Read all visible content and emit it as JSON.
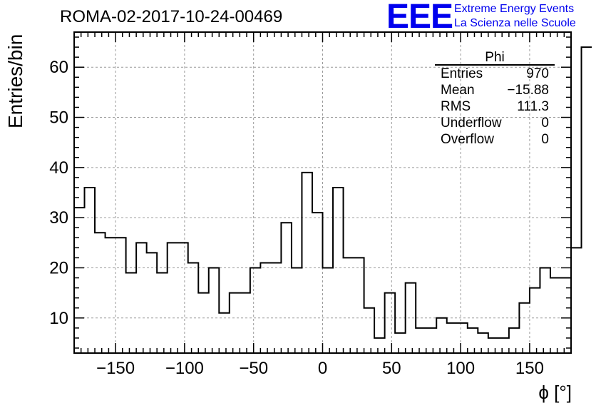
{
  "header": {
    "title": "ROMA-02-2017-10-24-00469",
    "logo_text": "EEE",
    "logo_line1": "Extreme Energy Events",
    "logo_line2": "La Scienza nelle Scuole"
  },
  "stats": {
    "name": "Phi",
    "rows": [
      {
        "label": "Entries",
        "value": "970"
      },
      {
        "label": "Mean",
        "value": "−15.88"
      },
      {
        "label": "RMS",
        "value": "111.3"
      },
      {
        "label": "Underflow",
        "value": "0"
      },
      {
        "label": "Overflow",
        "value": "0"
      }
    ]
  },
  "colors": {
    "logo": "#0000ee",
    "line": "#000000",
    "grid": "#9a9a9a"
  },
  "chart_data": {
    "type": "bar",
    "style": "step-histogram",
    "xlabel": "ϕ [°]",
    "ylabel": "Entries/bin",
    "xlim": [
      -180,
      180
    ],
    "ylim": [
      3,
      67
    ],
    "grid": true,
    "bin_width": 7.5,
    "xticks": [
      -150,
      -100,
      -50,
      0,
      50,
      100,
      150
    ],
    "yticks": [
      10,
      20,
      30,
      40,
      50,
      60
    ],
    "xtick_labels": [
      "−150",
      "−100",
      "−50",
      "0",
      "50",
      "100",
      "150"
    ],
    "ytick_labels": [
      "10",
      "20",
      "30",
      "40",
      "50",
      "60"
    ],
    "bin_edges_start": -180,
    "values": [
      32,
      36,
      27,
      26,
      26,
      19,
      25,
      23,
      19,
      25,
      25,
      21,
      15,
      20,
      11,
      15,
      15,
      20,
      21,
      21,
      29,
      20,
      39,
      31,
      20,
      36,
      22,
      22,
      12,
      6,
      15,
      7,
      17,
      8,
      8,
      10,
      9,
      9,
      8,
      7,
      6,
      6,
      8,
      13,
      16,
      20,
      18,
      18,
      24,
      64
    ]
  }
}
